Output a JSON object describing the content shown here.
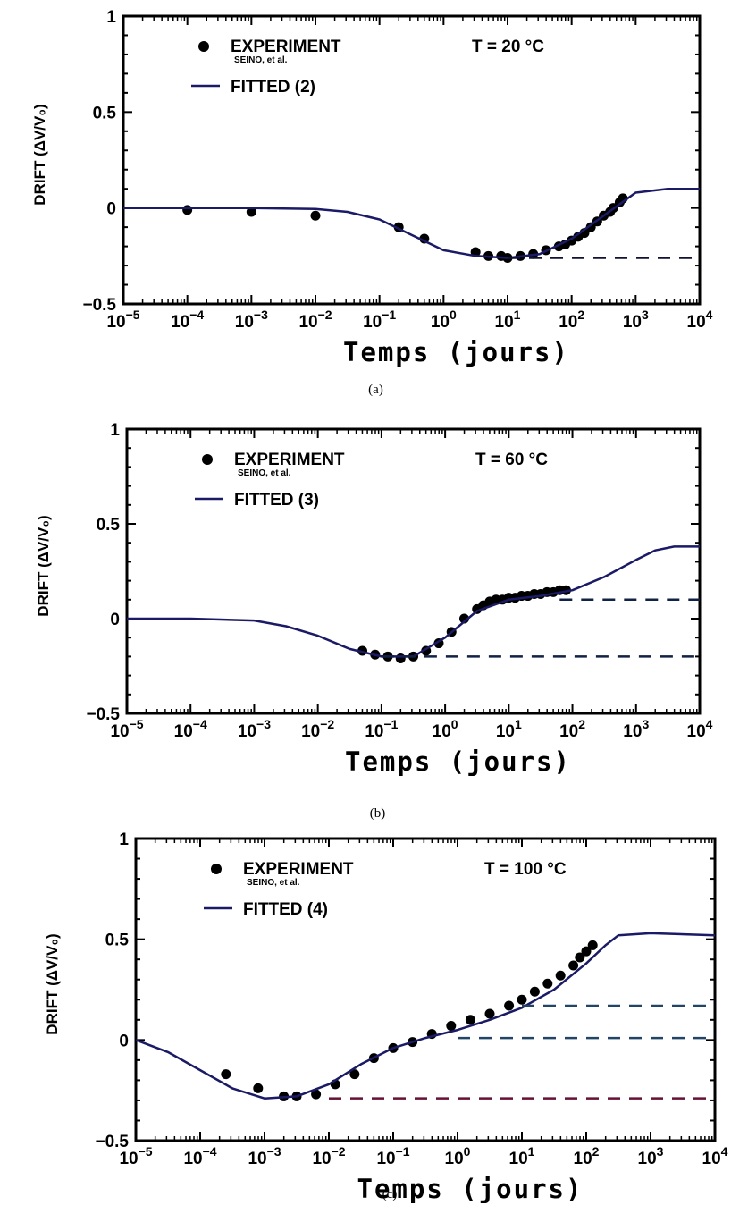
{
  "chart_data": [
    {
      "type": "line",
      "panel": "(a)",
      "xscale": "log",
      "xlabel": "Temps (jours)",
      "ylabel": "DRIFT (ΔV/V₀)",
      "xlim": [
        1e-05,
        10000.0
      ],
      "ylim": [
        -0.5,
        1
      ],
      "xtick_exponents": [
        -5,
        -4,
        -3,
        -2,
        -1,
        0,
        1,
        2,
        3,
        4
      ],
      "yticks": [
        "1",
        "0.5",
        "0",
        "−0.5"
      ],
      "ytick_values": [
        1,
        0.5,
        0,
        -0.5
      ],
      "annotation": "T = 20 °C",
      "legend": {
        "experiment": "EXPERIMENT",
        "experiment_sub": "SEINO, et al.",
        "fitted": "FITTED (2)",
        "placement": "top-left"
      },
      "series": [
        {
          "name": "EXPERIMENT",
          "kind": "points",
          "log10_x": [
            -4,
            -3,
            -2,
            -0.7,
            -0.3,
            0.5,
            0.7,
            0.9,
            1.0,
            1.2,
            1.4,
            1.6,
            1.8,
            1.9,
            2.0,
            2.1,
            2.2,
            2.3,
            2.4,
            2.5,
            2.6,
            2.65,
            2.75,
            2.8
          ],
          "y": [
            -0.01,
            -0.02,
            -0.04,
            -0.1,
            -0.16,
            -0.23,
            -0.25,
            -0.25,
            -0.26,
            -0.25,
            -0.24,
            -0.22,
            -0.2,
            -0.19,
            -0.17,
            -0.15,
            -0.13,
            -0.1,
            -0.07,
            -0.04,
            -0.02,
            0,
            0.03,
            0.05
          ]
        },
        {
          "name": "FITTED (2)",
          "kind": "line",
          "log10_x": [
            -5,
            -3,
            -2,
            -1.5,
            -1,
            -0.5,
            0,
            0.5,
            1,
            1.5,
            2,
            2.5,
            3,
            3.5,
            4
          ],
          "y": [
            0,
            0,
            -0.005,
            -0.02,
            -0.06,
            -0.14,
            -0.22,
            -0.25,
            -0.26,
            -0.24,
            -0.16,
            -0.04,
            0.08,
            0.1,
            0.1
          ]
        },
        {
          "name": "",
          "kind": "dashed",
          "log10_x": [
            1,
            4
          ],
          "y": [
            -0.26,
            -0.26
          ]
        }
      ]
    },
    {
      "type": "line",
      "panel": "(b)",
      "xscale": "log",
      "xlabel": "Temps (jours)",
      "ylabel": "DRIFT (ΔV/V₀)",
      "xlim": [
        1e-05,
        10000.0
      ],
      "ylim": [
        -0.5,
        1
      ],
      "xtick_exponents": [
        -5,
        -4,
        -3,
        -2,
        -1,
        0,
        1,
        2,
        3,
        4
      ],
      "yticks": [
        "1",
        "0.5",
        "0",
        "−0.5"
      ],
      "ytick_values": [
        1,
        0.5,
        0,
        -0.5
      ],
      "annotation": "T = 60 °C",
      "legend": {
        "experiment": "EXPERIMENT",
        "experiment_sub": "SEINO, et al.",
        "fitted": "FITTED (3)",
        "placement": "top-left"
      },
      "series": [
        {
          "name": "EXPERIMENT",
          "kind": "points",
          "log10_x": [
            -1.3,
            -1.1,
            -0.9,
            -0.7,
            -0.5,
            -0.3,
            -0.1,
            0.1,
            0.3,
            0.5,
            0.6,
            0.7,
            0.8,
            0.9,
            1.0,
            1.1,
            1.2,
            1.3,
            1.4,
            1.5,
            1.6,
            1.7,
            1.8,
            1.9
          ],
          "y": [
            -0.17,
            -0.19,
            -0.2,
            -0.21,
            -0.2,
            -0.17,
            -0.13,
            -0.07,
            0,
            0.05,
            0.07,
            0.09,
            0.1,
            0.1,
            0.11,
            0.11,
            0.12,
            0.12,
            0.13,
            0.13,
            0.14,
            0.14,
            0.15,
            0.15
          ]
        },
        {
          "name": "FITTED (3)",
          "kind": "line",
          "log10_x": [
            -5,
            -4,
            -3,
            -2.5,
            -2,
            -1.5,
            -1,
            -0.5,
            0,
            0.5,
            1,
            1.5,
            2,
            2.5,
            3,
            3.3,
            3.6,
            4
          ],
          "y": [
            0,
            0,
            -0.01,
            -0.04,
            -0.09,
            -0.16,
            -0.2,
            -0.2,
            -0.1,
            0.04,
            0.1,
            0.12,
            0.15,
            0.22,
            0.31,
            0.36,
            0.38,
            0.38
          ]
        },
        {
          "name": "",
          "kind": "dashed",
          "log10_x": [
            -1,
            4
          ],
          "y": [
            -0.2,
            -0.2
          ]
        },
        {
          "name": "",
          "kind": "dashed",
          "log10_x": [
            1.8,
            4
          ],
          "y": [
            0.1,
            0.1
          ]
        }
      ]
    },
    {
      "type": "line",
      "panel": "(c)",
      "xscale": "log",
      "xlabel": "Temps (jours)",
      "ylabel": "DRIFT (ΔV/V₀)",
      "xlim": [
        1e-05,
        10000.0
      ],
      "ylim": [
        -0.5,
        1
      ],
      "xtick_exponents": [
        -5,
        -4,
        -3,
        -2,
        -1,
        0,
        1,
        2,
        3,
        4
      ],
      "yticks": [
        "1",
        "0.5",
        "0",
        "−0.5"
      ],
      "ytick_values": [
        1,
        0.5,
        0,
        -0.5
      ],
      "annotation": "T = 100 °C",
      "legend": {
        "experiment": "EXPERIMENT",
        "experiment_sub": "SEINO, et al.",
        "fitted": "FITTED (4)",
        "placement": "top-left"
      },
      "series": [
        {
          "name": "EXPERIMENT",
          "kind": "points",
          "log10_x": [
            -3.6,
            -3.1,
            -2.7,
            -2.5,
            -2.2,
            -1.9,
            -1.6,
            -1.3,
            -1.0,
            -0.7,
            -0.4,
            -0.1,
            0.2,
            0.5,
            0.8,
            1.0,
            1.2,
            1.4,
            1.6,
            1.8,
            1.9,
            2.0,
            2.1
          ],
          "y": [
            -0.17,
            -0.24,
            -0.28,
            -0.28,
            -0.27,
            -0.22,
            -0.17,
            -0.09,
            -0.04,
            -0.01,
            0.03,
            0.07,
            0.1,
            0.13,
            0.17,
            0.2,
            0.24,
            0.28,
            0.32,
            0.37,
            0.41,
            0.44,
            0.47
          ]
        },
        {
          "name": "FITTED (4)",
          "kind": "line",
          "log10_x": [
            -5,
            -4.5,
            -4,
            -3.5,
            -3,
            -2.5,
            -2,
            -1.5,
            -1,
            -0.5,
            0,
            0.5,
            1,
            1.5,
            2,
            2.3,
            2.5,
            3,
            4
          ],
          "y": [
            0,
            -0.06,
            -0.15,
            -0.24,
            -0.29,
            -0.28,
            -0.22,
            -0.12,
            -0.04,
            0.01,
            0.05,
            0.1,
            0.16,
            0.25,
            0.38,
            0.47,
            0.52,
            0.53,
            0.52
          ]
        },
        {
          "name": "",
          "kind": "dashed",
          "log10_x": [
            -2,
            4
          ],
          "y": [
            -0.29,
            -0.29
          ]
        },
        {
          "name": "",
          "kind": "dashed",
          "log10_x": [
            0,
            4
          ],
          "y": [
            0.01,
            0.01
          ]
        },
        {
          "name": "",
          "kind": "dashed",
          "log10_x": [
            1,
            4
          ],
          "y": [
            0.17,
            0.17
          ]
        }
      ]
    }
  ]
}
